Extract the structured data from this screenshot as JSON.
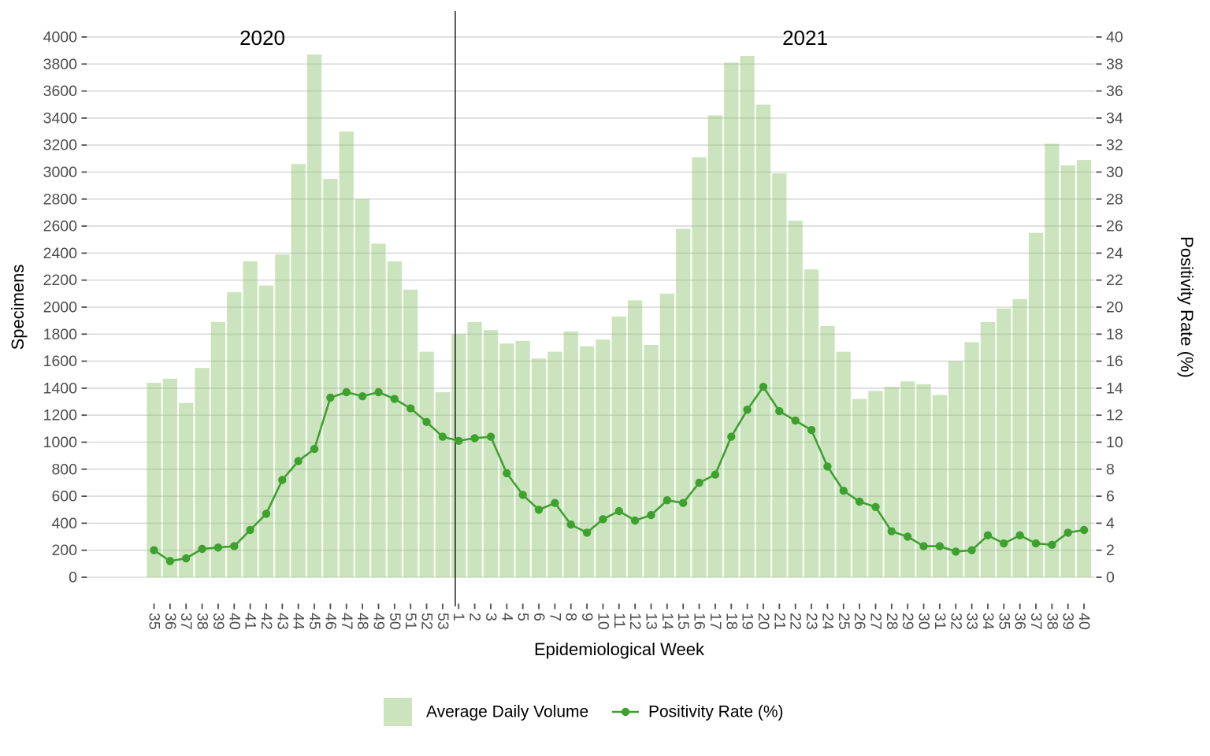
{
  "chart_data": {
    "type": "combo",
    "subtypes": [
      "bar",
      "line"
    ],
    "year_labels": [
      "2020",
      "2021"
    ],
    "x_axis": {
      "title": "Epidemiological Week",
      "tick_rotation_deg": 90
    },
    "y_left_axis": {
      "title": "Specimens",
      "min": 0,
      "max": 4000,
      "tick_step": 200
    },
    "y_right_axis": {
      "title": "Positivity Rate (%)",
      "min": 0,
      "max": 40,
      "tick_step": 2
    },
    "legend": {
      "bar_label": "Average Daily Volume",
      "line_label": "Positivity Rate (%)"
    },
    "grid": true,
    "series": [
      {
        "year": "2020",
        "weeks": [
          35,
          36,
          37,
          38,
          39,
          40,
          41,
          42,
          43,
          44,
          45,
          46,
          47,
          48,
          49,
          50,
          51,
          52,
          53
        ],
        "avg_daily_volume": [
          1440,
          1470,
          1290,
          1550,
          1890,
          2110,
          2340,
          2160,
          2390,
          3060,
          3870,
          2950,
          3300,
          2800,
          2470,
          2340,
          2130,
          1670,
          1370
        ],
        "positivity_rate_pct": [
          2.0,
          1.2,
          1.4,
          2.1,
          2.2,
          2.3,
          3.5,
          4.7,
          7.2,
          8.6,
          9.5,
          13.3,
          13.7,
          13.4,
          13.7,
          13.2,
          12.5,
          11.5,
          10.4
        ]
      },
      {
        "year": "2021",
        "weeks": [
          1,
          2,
          3,
          4,
          5,
          6,
          7,
          8,
          9,
          10,
          11,
          12,
          13,
          14,
          15,
          16,
          17,
          18,
          19,
          20,
          21,
          22,
          23,
          24,
          25,
          26,
          27,
          28,
          29,
          30,
          31,
          32,
          33,
          34,
          35,
          36,
          37,
          38,
          39,
          40
        ],
        "avg_daily_volume": [
          1800,
          1890,
          1830,
          1730,
          1750,
          1620,
          1670,
          1820,
          1710,
          1760,
          1930,
          2050,
          1720,
          2100,
          2580,
          3110,
          3420,
          3810,
          3860,
          3500,
          2990,
          2640,
          2280,
          1860,
          1670,
          1320,
          1380,
          1410,
          1450,
          1430,
          1350,
          1600,
          1740,
          1890,
          1990,
          2060,
          2550,
          3210,
          3050,
          3090
        ],
        "positivity_rate_pct": [
          10.1,
          10.3,
          10.4,
          7.7,
          6.1,
          5.0,
          5.5,
          3.9,
          3.3,
          4.3,
          4.9,
          4.2,
          4.6,
          5.7,
          5.5,
          7.0,
          7.6,
          10.4,
          12.4,
          14.1,
          12.3,
          11.6,
          10.9,
          8.2,
          6.4,
          5.6,
          5.2,
          3.4,
          3.0,
          2.3,
          2.3,
          1.9,
          2.0,
          3.1,
          2.5,
          3.1,
          2.5,
          2.4,
          3.3,
          3.5
        ]
      }
    ],
    "colors": {
      "bar_fill": "#8bc36c",
      "bar_fill_legend": "#cbe4bd",
      "line": "#3ea12f",
      "gridline": "#d9d9d9",
      "tick_label": "#4d4d4d",
      "text": "#000000",
      "year_divider": "#000000",
      "background": "#ffffff"
    }
  }
}
